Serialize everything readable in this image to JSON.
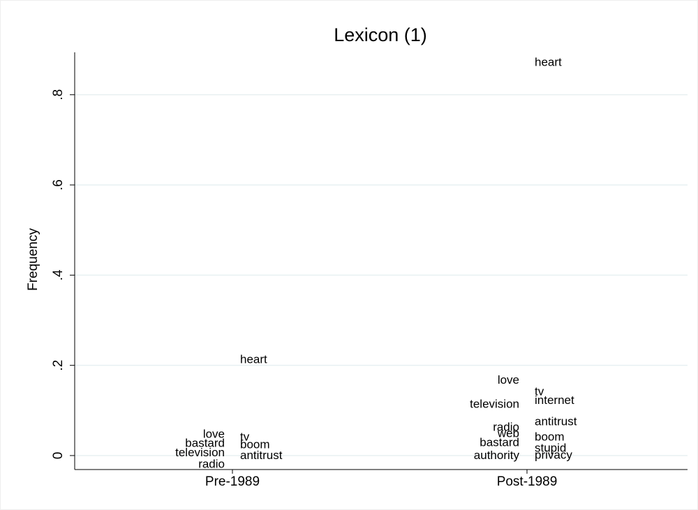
{
  "chart_data": {
    "type": "scatter",
    "title": "Lexicon (1)",
    "y_label": "Frequency",
    "categories": [
      "Pre-1989",
      "Post-1989"
    ],
    "ylim": [
      -0.031,
      0.894
    ],
    "yticks": [
      0,
      {
        "value": 0.2,
        "label": ".2"
      },
      {
        "value": 0.4,
        "label": ".4"
      },
      {
        "value": 0.6,
        "label": ".6"
      },
      {
        "value": 0.8,
        "label": ".8"
      }
    ],
    "grid": true,
    "grid_color": "#e8f0f2",
    "color": "#000000",
    "points": [
      {
        "word": "heart",
        "category": 0,
        "value": 0.212,
        "side": "right"
      },
      {
        "word": "love",
        "category": 0,
        "value": 0.046,
        "side": "left"
      },
      {
        "word": "tv",
        "category": 0,
        "value": 0.04,
        "side": "right"
      },
      {
        "word": "bastard",
        "category": 0,
        "value": 0.026,
        "side": "left"
      },
      {
        "word": "boom",
        "category": 0,
        "value": 0.023,
        "side": "right"
      },
      {
        "word": "television",
        "category": 0,
        "value": 0.005,
        "side": "left"
      },
      {
        "word": "antitrust",
        "category": 0,
        "value": -0.001,
        "side": "right"
      },
      {
        "word": "radio",
        "category": 0,
        "value": -0.02,
        "side": "left"
      },
      {
        "word": "heart",
        "category": 1,
        "value": 0.871,
        "side": "right"
      },
      {
        "word": "love",
        "category": 1,
        "value": 0.166,
        "side": "left"
      },
      {
        "word": "tv",
        "category": 1,
        "value": 0.141,
        "side": "right"
      },
      {
        "word": "internet",
        "category": 1,
        "value": 0.121,
        "side": "right"
      },
      {
        "word": "television",
        "category": 1,
        "value": 0.113,
        "side": "left"
      },
      {
        "word": "antitrust",
        "category": 1,
        "value": 0.074,
        "side": "right"
      },
      {
        "word": "radio",
        "category": 1,
        "value": 0.062,
        "side": "left"
      },
      {
        "word": "web",
        "category": 1,
        "value": 0.048,
        "side": "left"
      },
      {
        "word": "boom",
        "category": 1,
        "value": 0.04,
        "side": "right"
      },
      {
        "word": "bastard",
        "category": 1,
        "value": 0.028,
        "side": "left"
      },
      {
        "word": "stupid",
        "category": 1,
        "value": 0.015,
        "side": "right"
      },
      {
        "word": "authority",
        "category": 1,
        "value": -0.001,
        "side": "left"
      },
      {
        "word": "privacy",
        "category": 1,
        "value": 0.0,
        "side": "right"
      }
    ]
  }
}
